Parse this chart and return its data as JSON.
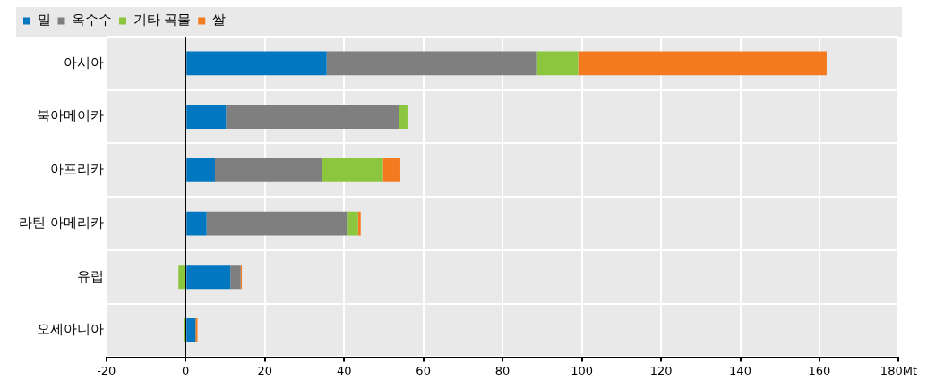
{
  "chart_data": {
    "type": "bar",
    "orientation": "horizontal",
    "stacked": true,
    "categories": [
      "아시아",
      "북아메이카",
      "아프리카",
      "라틴 아메리카",
      "유럽",
      "오세아니아"
    ],
    "series": [
      {
        "name": "밀",
        "color": "#0077c0",
        "values": [
          35.6,
          10.2,
          7.4,
          5.3,
          11.3,
          2.5
        ]
      },
      {
        "name": "옥수수",
        "color": "#7f7f7f",
        "values": [
          53.1,
          43.7,
          27.1,
          35.4,
          2.6,
          0
        ]
      },
      {
        "name": "기타 곡물",
        "color": "#8cc63f",
        "values": [
          10.4,
          2.1,
          15.3,
          2.8,
          -1.8,
          -0.5
        ]
      },
      {
        "name": "쌀",
        "color": "#f47a20",
        "values": [
          62.7,
          0.2,
          4.4,
          0.7,
          0.3,
          0.5
        ]
      }
    ],
    "xlim": [
      -20,
      180
    ],
    "xticks": [
      -20,
      0,
      20,
      40,
      60,
      80,
      100,
      120,
      140,
      160,
      {
        "value": 180,
        "label": "180Mt"
      }
    ],
    "grid": true,
    "legend": "top left"
  }
}
